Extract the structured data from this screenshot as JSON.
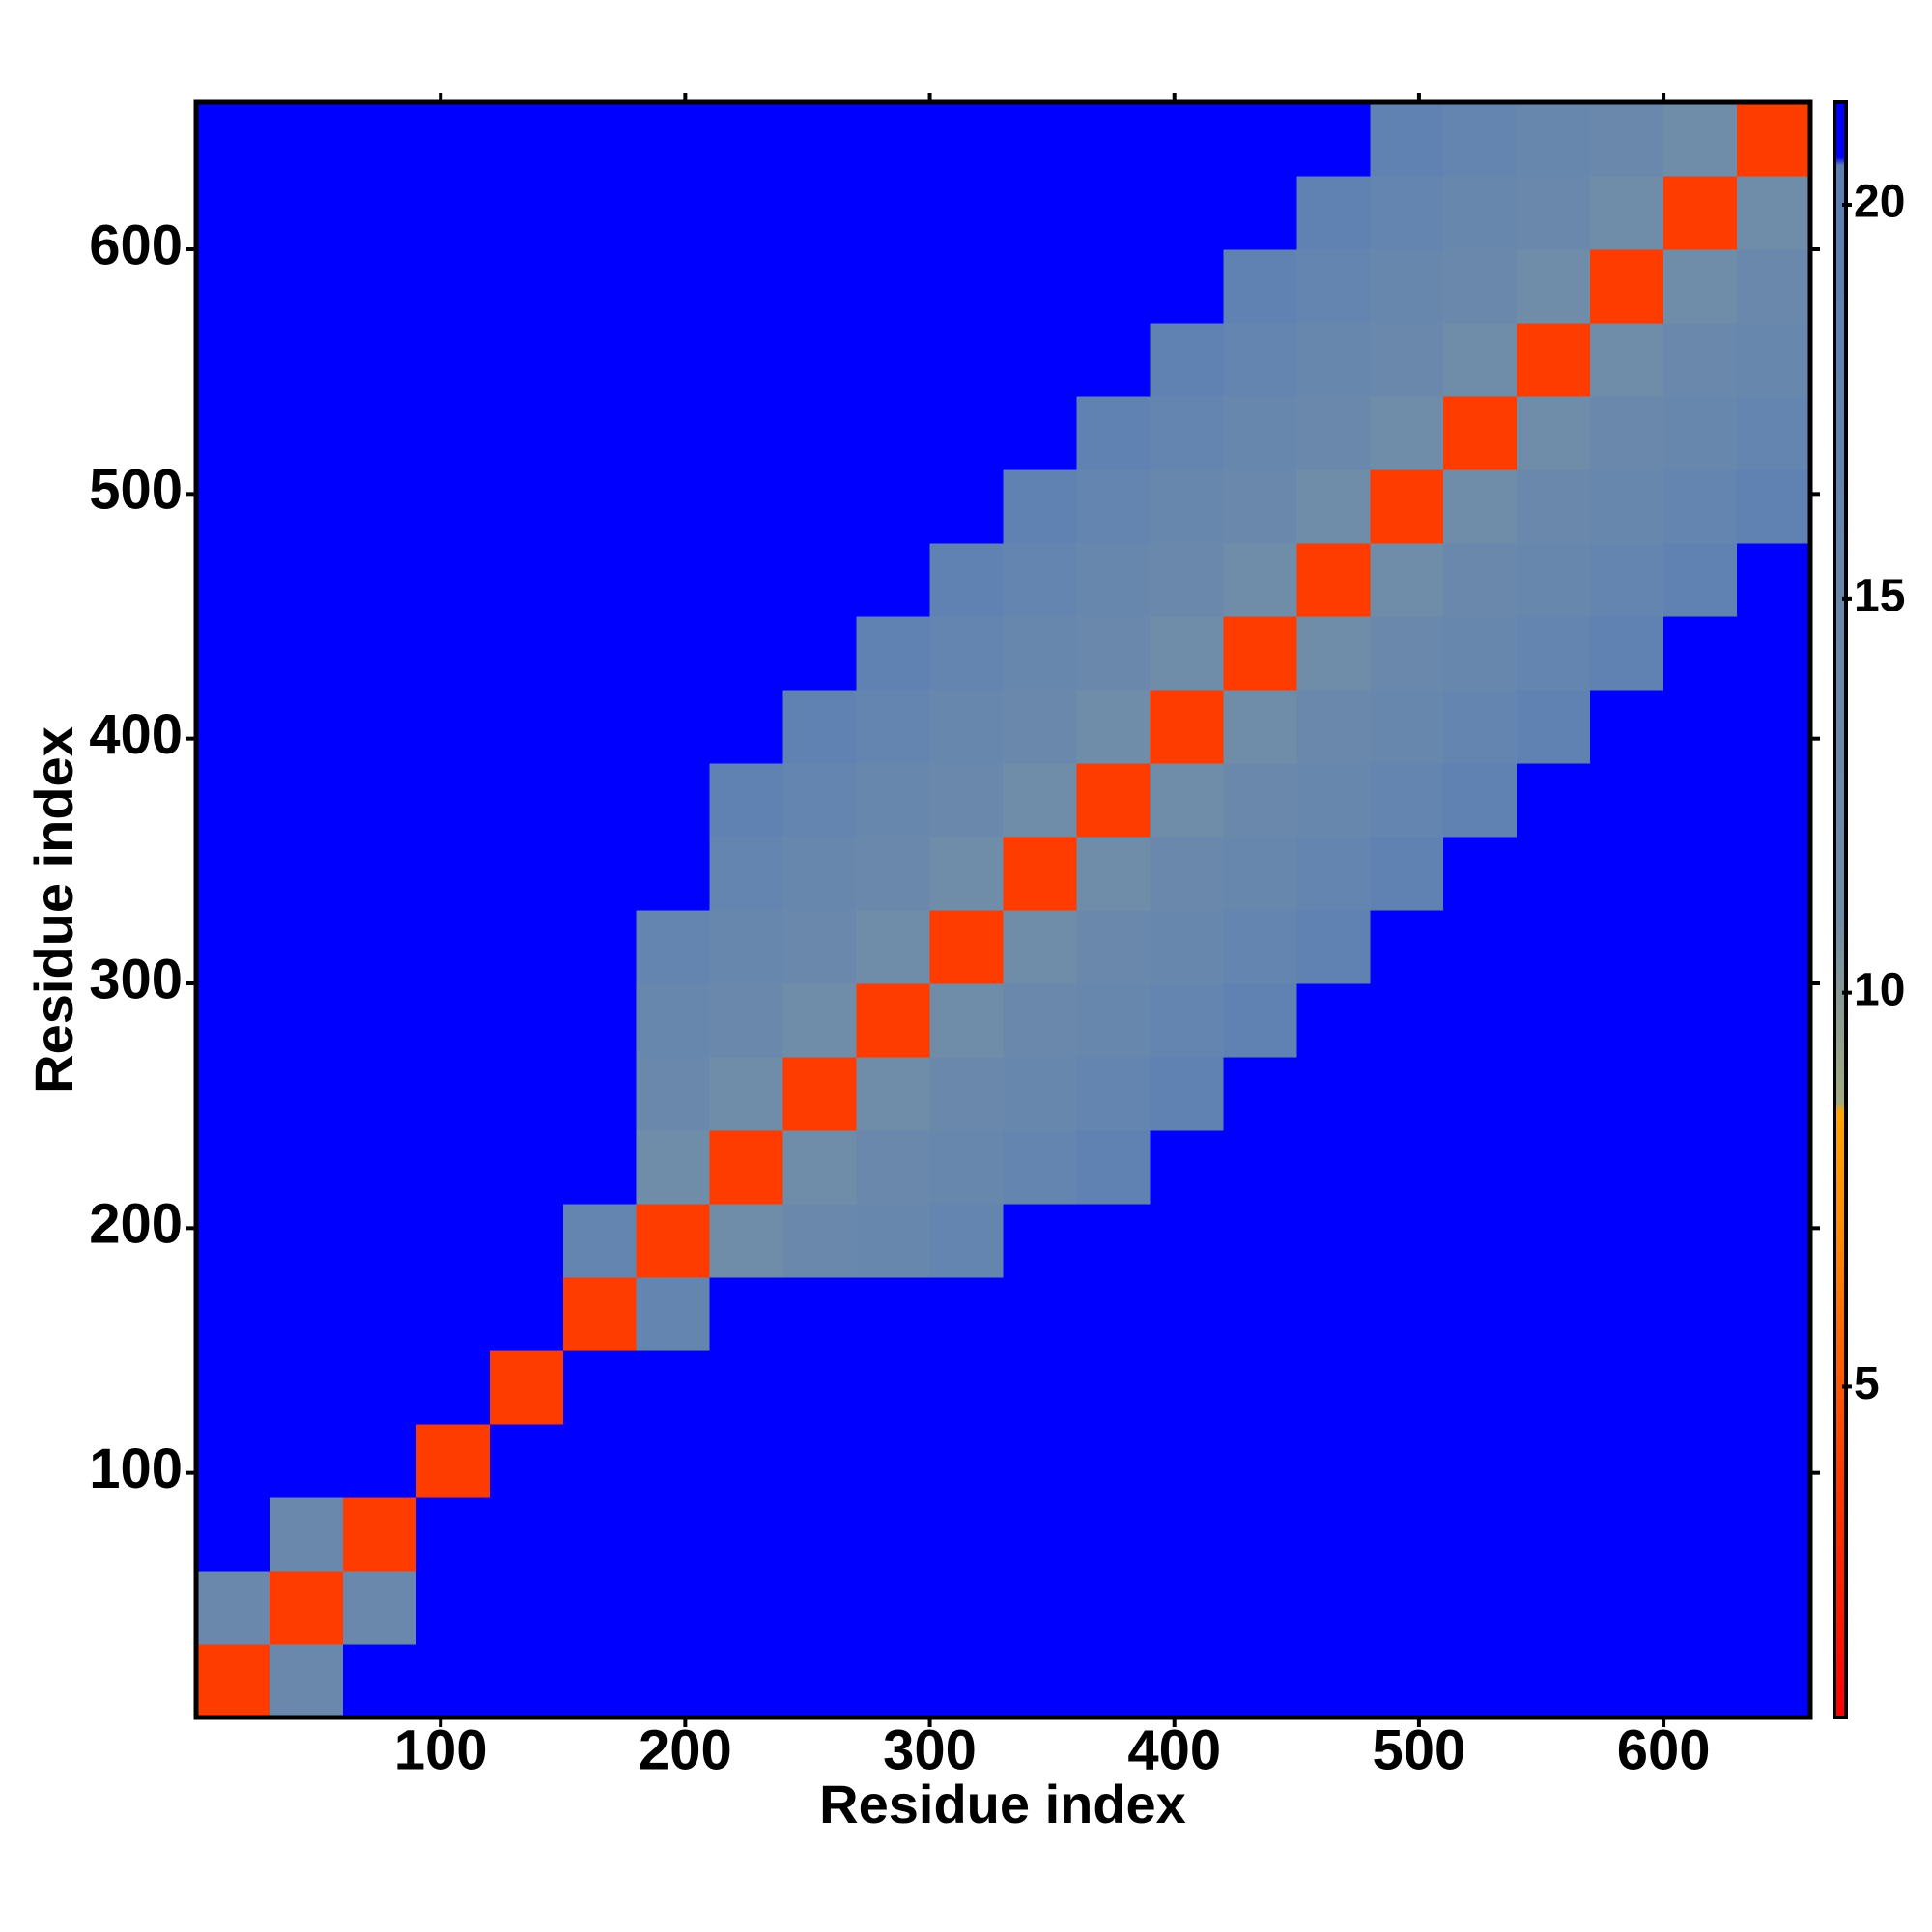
{
  "chart_data": {
    "type": "heatmap",
    "xlabel": "Residue index",
    "ylabel": "Residue index",
    "xlim": [
      0,
      660
    ],
    "ylim": [
      0,
      660
    ],
    "xticks": [
      100,
      200,
      300,
      400,
      500,
      600
    ],
    "yticks": [
      100,
      200,
      300,
      400,
      500,
      600
    ],
    "xbins": [
      0,
      30,
      60,
      90,
      120,
      150,
      180,
      210,
      240,
      270,
      300,
      330,
      360,
      390,
      420,
      450,
      480,
      510,
      540,
      570,
      600,
      630,
      660
    ],
    "ybins": [
      0,
      30,
      60,
      90,
      120,
      150,
      180,
      210,
      240,
      270,
      300,
      330,
      360,
      390,
      420,
      450,
      480,
      510,
      540,
      570,
      600,
      630,
      660
    ],
    "z": [
      [
        4,
        14,
        21,
        21,
        21,
        21,
        21,
        21,
        21,
        21,
        21,
        21,
        21,
        21,
        21,
        21,
        21,
        21,
        21,
        21,
        21,
        21
      ],
      [
        14,
        4,
        14,
        21,
        21,
        21,
        21,
        21,
        21,
        21,
        21,
        21,
        21,
        21,
        21,
        21,
        21,
        21,
        21,
        21,
        21,
        21
      ],
      [
        21,
        14,
        4,
        21,
        21,
        21,
        21,
        21,
        21,
        21,
        21,
        21,
        21,
        21,
        21,
        21,
        21,
        21,
        21,
        21,
        21,
        21
      ],
      [
        21,
        21,
        21,
        4,
        21,
        21,
        21,
        21,
        21,
        21,
        21,
        21,
        21,
        21,
        21,
        21,
        21,
        21,
        21,
        21,
        21,
        21
      ],
      [
        21,
        21,
        21,
        21,
        4,
        21,
        21,
        21,
        21,
        21,
        21,
        21,
        21,
        21,
        21,
        21,
        21,
        21,
        21,
        21,
        21,
        21
      ],
      [
        21,
        21,
        21,
        21,
        21,
        4,
        16,
        21,
        21,
        21,
        21,
        21,
        21,
        21,
        21,
        21,
        21,
        21,
        21,
        21,
        21,
        21
      ],
      [
        21,
        21,
        21,
        21,
        21,
        16,
        4,
        11,
        14,
        15,
        16,
        21,
        21,
        21,
        21,
        21,
        21,
        21,
        21,
        21,
        21,
        21
      ],
      [
        21,
        21,
        21,
        21,
        21,
        21,
        11,
        4,
        11,
        14,
        15,
        16,
        18,
        21,
        21,
        21,
        21,
        21,
        21,
        21,
        21,
        21
      ],
      [
        21,
        21,
        21,
        21,
        21,
        21,
        14,
        11,
        4,
        11,
        14,
        15,
        16,
        18,
        21,
        21,
        21,
        21,
        21,
        21,
        21,
        21
      ],
      [
        21,
        21,
        21,
        21,
        21,
        21,
        15,
        14,
        11,
        4,
        11,
        14,
        15,
        16,
        18,
        21,
        21,
        21,
        21,
        21,
        21,
        21
      ],
      [
        21,
        21,
        21,
        21,
        21,
        21,
        16,
        15,
        14,
        11,
        4,
        11,
        14,
        15,
        16,
        18,
        21,
        21,
        21,
        21,
        21,
        21
      ],
      [
        21,
        21,
        21,
        21,
        21,
        21,
        21,
        16,
        15,
        14,
        11,
        4,
        11,
        14,
        15,
        16,
        18,
        21,
        21,
        21,
        21,
        21
      ],
      [
        21,
        21,
        21,
        21,
        21,
        21,
        21,
        18,
        16,
        15,
        14,
        11,
        4,
        11,
        14,
        15,
        16,
        18,
        21,
        21,
        21,
        21
      ],
      [
        21,
        21,
        21,
        21,
        21,
        21,
        21,
        21,
        18,
        16,
        15,
        14,
        11,
        4,
        11,
        14,
        15,
        16,
        18,
        21,
        21,
        21
      ],
      [
        21,
        21,
        21,
        21,
        21,
        21,
        21,
        21,
        21,
        18,
        16,
        15,
        14,
        11,
        4,
        11,
        14,
        15,
        16,
        18,
        21,
        21
      ],
      [
        21,
        21,
        21,
        21,
        21,
        21,
        21,
        21,
        21,
        21,
        18,
        16,
        15,
        14,
        11,
        4,
        11,
        14,
        15,
        16,
        18,
        21
      ],
      [
        21,
        21,
        21,
        21,
        21,
        21,
        21,
        21,
        21,
        21,
        21,
        18,
        16,
        15,
        14,
        11,
        4,
        11,
        14,
        15,
        16,
        18
      ],
      [
        21,
        21,
        21,
        21,
        21,
        21,
        21,
        21,
        21,
        21,
        21,
        21,
        18,
        16,
        15,
        14,
        11,
        4,
        11,
        14,
        15,
        16
      ],
      [
        21,
        21,
        21,
        21,
        21,
        21,
        21,
        21,
        21,
        21,
        21,
        21,
        21,
        18,
        16,
        15,
        14,
        11,
        4,
        11,
        14,
        15
      ],
      [
        21,
        21,
        21,
        21,
        21,
        21,
        21,
        21,
        21,
        21,
        21,
        21,
        21,
        21,
        18,
        16,
        15,
        14,
        11,
        4,
        11,
        14
      ],
      [
        21,
        21,
        21,
        21,
        21,
        21,
        21,
        21,
        21,
        21,
        21,
        21,
        21,
        21,
        21,
        18,
        16,
        15,
        14,
        11,
        4,
        11
      ],
      [
        21,
        21,
        21,
        21,
        21,
        21,
        21,
        21,
        21,
        21,
        21,
        21,
        21,
        21,
        21,
        21,
        18,
        16,
        15,
        14,
        11,
        4
      ]
    ],
    "clim": [
      0.8,
      21.3
    ],
    "cticks": [
      5,
      10,
      15,
      20
    ],
    "colorscale": [
      [
        0.8,
        "#ff0000"
      ],
      [
        4,
        "#ff3c00"
      ],
      [
        7,
        "#ff8c00"
      ],
      [
        8.5,
        "#ffa500"
      ],
      [
        8.6,
        "#a3ab7e"
      ],
      [
        11,
        "#6f8ca8"
      ],
      [
        20.5,
        "#5b7fb5"
      ],
      [
        20.6,
        "#0000ff"
      ],
      [
        21.3,
        "#0000ff"
      ]
    ]
  }
}
